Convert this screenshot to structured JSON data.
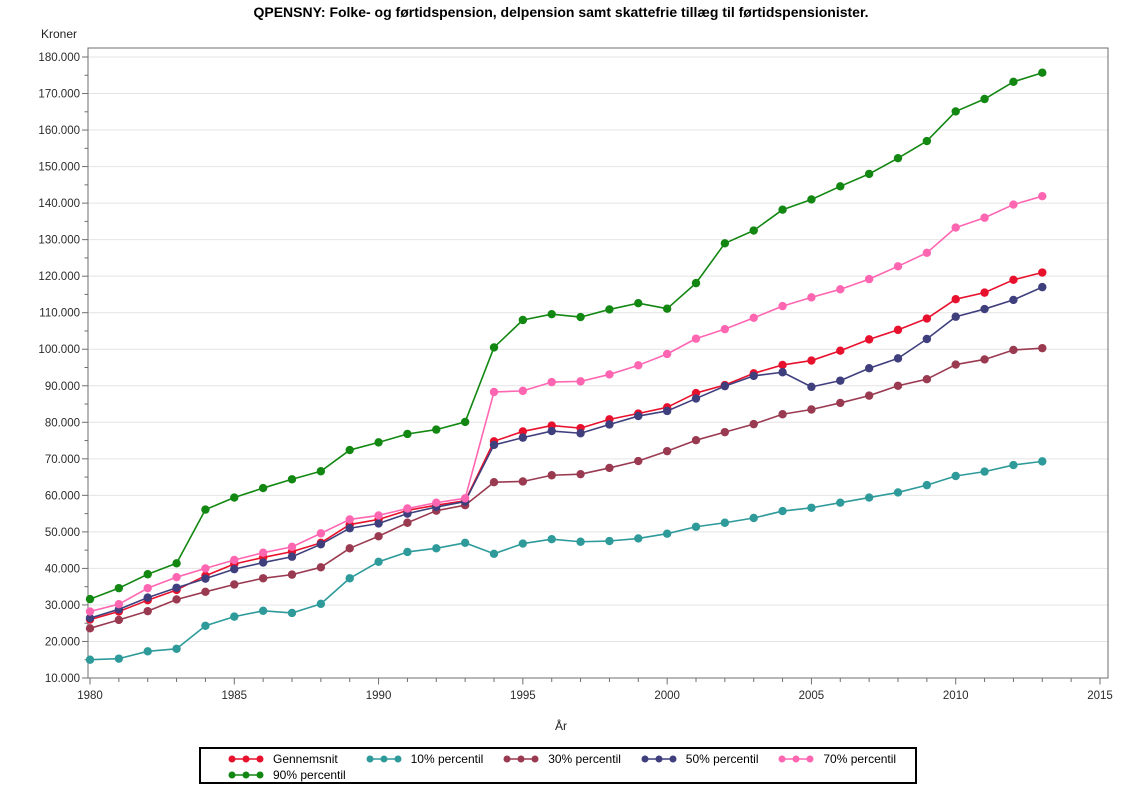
{
  "title": "QPENSNY:  Folke- og førtidspension, delpension samt skattefrie tillæg til førtidspensionister.",
  "chart_data": {
    "type": "line",
    "title": "QPENSNY:  Folke- og førtidspension, delpension samt skattefrie tillæg til førtidspensionister.",
    "ylabel": "Kroner",
    "xlabel": "År",
    "xlim": [
      1980,
      2015
    ],
    "ylim": [
      10000,
      180000
    ],
    "ytick_major": 10000,
    "ytick_minor": 5000,
    "xtick_major": 5,
    "xtick_minor": 1,
    "grid": "horizontal",
    "legend_position": "bottom",
    "legend_columns": 5,
    "x": [
      1980,
      1981,
      1982,
      1983,
      1984,
      1985,
      1986,
      1987,
      1988,
      1989,
      1990,
      1991,
      1992,
      1993,
      1994,
      1995,
      1996,
      1997,
      1998,
      1999,
      2000,
      2001,
      2002,
      2003,
      2004,
      2005,
      2006,
      2007,
      2008,
      2009,
      2010,
      2011,
      2012,
      2013
    ],
    "series": [
      {
        "name": "Gennemsnit",
        "color": "#e8112d",
        "values": [
          26000,
          28200,
          31300,
          34100,
          38000,
          41200,
          43000,
          44600,
          47000,
          52000,
          53400,
          55900,
          57300,
          58500,
          74800,
          77500,
          79100,
          78400,
          80800,
          82400,
          84100,
          88000,
          90200,
          93400,
          95700,
          96900,
          99600,
          102700,
          105300,
          108400,
          113700,
          115500,
          119000,
          121000
        ]
      },
      {
        "name": "10% percentil",
        "color": "#2e9a9a",
        "values": [
          15000,
          15300,
          17300,
          18000,
          24300,
          26800,
          28400,
          27800,
          30300,
          37300,
          41800,
          44500,
          45500,
          47000,
          44000,
          46800,
          48000,
          47300,
          47500,
          48200,
          49500,
          51400,
          52500,
          53800,
          55700,
          56600,
          58000,
          59400,
          60800,
          62800,
          65300,
          66500,
          68300,
          69300
        ]
      },
      {
        "name": "30% percentil",
        "color": "#9a3a50",
        "values": [
          23600,
          25900,
          28300,
          31500,
          33600,
          35600,
          37300,
          38300,
          40300,
          45500,
          48800,
          52500,
          55800,
          57300,
          63600,
          63800,
          65500,
          65800,
          67500,
          69400,
          72100,
          75100,
          77300,
          79500,
          82200,
          83500,
          85300,
          87300,
          90000,
          91800,
          95800,
          97200,
          99800,
          100300
        ]
      },
      {
        "name": "50% percentil",
        "color": "#3f3f7e",
        "values": [
          26400,
          28800,
          32000,
          34700,
          37200,
          39800,
          41600,
          43200,
          46600,
          51000,
          52300,
          55000,
          56800,
          58300,
          73800,
          75800,
          77600,
          77000,
          79400,
          81700,
          83100,
          86500,
          89900,
          92700,
          93700,
          89700,
          91400,
          94800,
          97500,
          102800,
          108900,
          111000,
          113500,
          117000
        ]
      },
      {
        "name": "70% percentil",
        "color": "#ff66b2",
        "values": [
          28200,
          30200,
          34600,
          37600,
          40000,
          42300,
          44300,
          45900,
          49600,
          53400,
          54500,
          56400,
          58000,
          59200,
          88300,
          88600,
          91000,
          91200,
          93100,
          95600,
          98700,
          102900,
          105500,
          108600,
          111800,
          114200,
          116400,
          119200,
          122700,
          126400,
          133300,
          136000,
          139600,
          141900
        ]
      },
      {
        "name": "90% percentil",
        "color": "#128712",
        "values": [
          31600,
          34600,
          38400,
          41400,
          56100,
          59400,
          62000,
          64400,
          66600,
          72400,
          74500,
          76800,
          78000,
          80100,
          100500,
          108000,
          109600,
          108800,
          110900,
          112600,
          111100,
          118100,
          129000,
          132500,
          138200,
          141000,
          144600,
          148000,
          152300,
          157000,
          165100,
          168500,
          173200,
          175700
        ]
      }
    ]
  }
}
